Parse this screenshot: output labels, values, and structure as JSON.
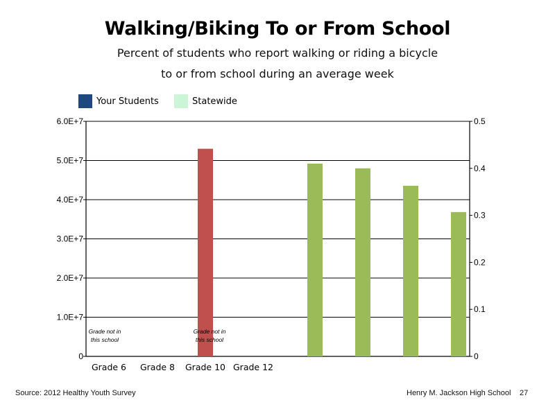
{
  "chart_data": {
    "type": "bar",
    "title": "Walking/Biking To or From School",
    "subtitle_lines": [
      "Percent of students who report walking or riding a bicycle",
      "to or from school during an average week"
    ],
    "legend": [
      {
        "name": "Your Students",
        "color": "#1f497d"
      },
      {
        "name": "Statewide",
        "color": "#ccf5d8"
      }
    ],
    "categories": [
      "Grade 6",
      "Grade 8",
      "Grade 10",
      "Grade 12"
    ],
    "left_axis": {
      "ylim": [
        0,
        60000000
      ],
      "ticks": [
        "0",
        "1.0E+7",
        "2.0E+7",
        "3.0E+7",
        "4.0E+7",
        "5.0E+7",
        "6.0E+7"
      ]
    },
    "right_axis": {
      "ylim": [
        0,
        0.5
      ],
      "ticks": [
        "0",
        "0.1",
        "0.2",
        "0.3",
        "0.4",
        "0.5"
      ]
    },
    "grid": true,
    "legend_position": "top-left",
    "series": [
      {
        "axis": "left",
        "color": "#c0504d",
        "values": [
          null,
          null,
          53000000,
          null
        ]
      },
      {
        "axis": "right",
        "color": "#9bbb59",
        "values": [
          0.41,
          0.4,
          0.363,
          0.307
        ]
      }
    ],
    "annotations": [
      {
        "category": "Grade 6",
        "lines": [
          "Grade not in",
          "this school"
        ]
      },
      {
        "category": "Grade 10",
        "lines": [
          "Grade not in",
          "this school"
        ]
      }
    ]
  },
  "footer": {
    "source": "Source: 2012 Healthy Youth Survey",
    "school": "Henry M. Jackson High School",
    "page_number": "27"
  }
}
